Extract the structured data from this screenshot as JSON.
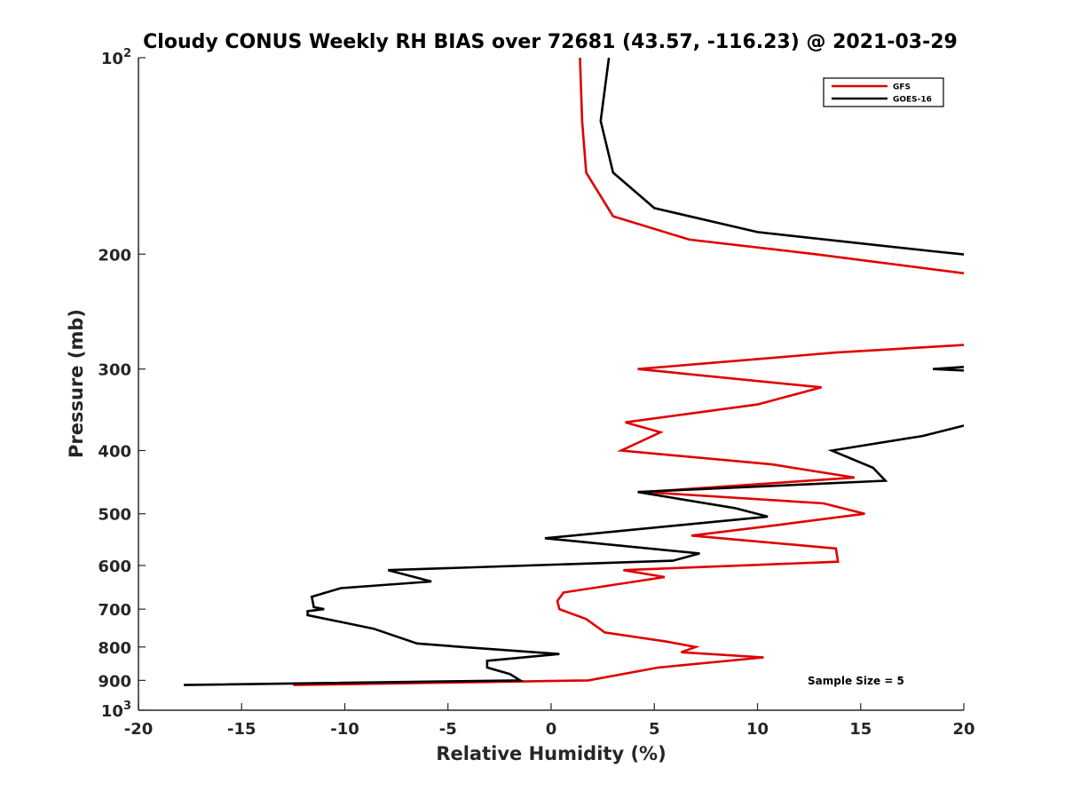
{
  "chart_data": {
    "type": "line",
    "title": "Cloudy CONUS Weekly RH BIAS over 72681 (43.57, -116.23) @ 2021-03-29",
    "xlabel": "Relative Humidity (%)",
    "ylabel": "Pressure (mb)",
    "xlim": [
      -20,
      20
    ],
    "ylim": [
      100,
      1000
    ],
    "y_scale": "log",
    "y_reversed": true,
    "x_ticks": [
      "-20",
      "-15",
      "-10",
      "-5",
      "0",
      "5",
      "10",
      "15",
      "20"
    ],
    "y_ticks": [
      {
        "value": 100,
        "base": "10",
        "exp": "2"
      },
      {
        "value": 200,
        "label": "200"
      },
      {
        "value": 300,
        "label": "300"
      },
      {
        "value": 400,
        "label": "400"
      },
      {
        "value": 500,
        "label": "500"
      },
      {
        "value": 600,
        "label": "600"
      },
      {
        "value": 700,
        "label": "700"
      },
      {
        "value": 800,
        "label": "800"
      },
      {
        "value": 900,
        "label": "900"
      },
      {
        "value": 1000,
        "base": "10",
        "exp": "3"
      }
    ],
    "legend_position": "top-right",
    "grid": false,
    "annotation": "Sample Size = 5",
    "series": [
      {
        "name": "GFS",
        "color": "#e00000",
        "points": [
          [
            1.4,
            100
          ],
          [
            1.5,
            125
          ],
          [
            1.7,
            150
          ],
          [
            3.0,
            175
          ],
          [
            6.7,
            190
          ],
          [
            12.8,
            200
          ],
          [
            20.5,
            215
          ],
          [
            null,
            null
          ],
          [
            20.5,
            275
          ],
          [
            13.8,
            283
          ],
          [
            4.2,
            300
          ],
          [
            13.1,
            320
          ],
          [
            10.0,
            340
          ],
          [
            3.6,
            362
          ],
          [
            5.3,
            375
          ],
          [
            3.4,
            400
          ],
          [
            10.7,
            420
          ],
          [
            14.7,
            440
          ],
          [
            4.5,
            463
          ],
          [
            13.2,
            482
          ],
          [
            15.2,
            500
          ],
          [
            11.0,
            520
          ],
          [
            6.8,
            540
          ],
          [
            13.8,
            565
          ],
          [
            13.9,
            592
          ],
          [
            3.5,
            610
          ],
          [
            5.5,
            625
          ],
          [
            0.6,
            660
          ],
          [
            0.3,
            680
          ],
          [
            0.4,
            700
          ],
          [
            1.7,
            725
          ],
          [
            2.6,
            760
          ],
          [
            5.6,
            785
          ],
          [
            7.0,
            800
          ],
          [
            6.3,
            815
          ],
          [
            10.3,
            830
          ],
          [
            5.2,
            860
          ],
          [
            1.8,
            900
          ],
          [
            -12.5,
            915
          ]
        ]
      },
      {
        "name": "GOES-16",
        "color": "#000000",
        "points": [
          [
            2.8,
            100
          ],
          [
            2.4,
            125
          ],
          [
            3.0,
            150
          ],
          [
            5.0,
            170
          ],
          [
            10.0,
            185
          ],
          [
            18.5,
            198
          ],
          [
            20.5,
            201
          ],
          [
            null,
            null
          ],
          [
            20.5,
            297
          ],
          [
            18.5,
            300
          ],
          [
            20.5,
            302
          ],
          [
            null,
            null
          ],
          [
            20.5,
            363
          ],
          [
            18.0,
            380
          ],
          [
            13.6,
            400
          ],
          [
            15.6,
            425
          ],
          [
            16.2,
            445
          ],
          [
            4.2,
            463
          ],
          [
            8.9,
            490
          ],
          [
            10.5,
            505
          ],
          [
            -0.3,
            545
          ],
          [
            7.2,
            575
          ],
          [
            5.9,
            590
          ],
          [
            -7.9,
            610
          ],
          [
            -5.8,
            635
          ],
          [
            -10.2,
            650
          ],
          [
            -11.6,
            670
          ],
          [
            -11.5,
            695
          ],
          [
            -11.0,
            700
          ],
          [
            -11.8,
            705
          ],
          [
            -11.8,
            715
          ],
          [
            -8.6,
            750
          ],
          [
            -6.5,
            790
          ],
          [
            -4.3,
            800
          ],
          [
            0.4,
            820
          ],
          [
            -3.1,
            840
          ],
          [
            -3.1,
            860
          ],
          [
            -2.0,
            880
          ],
          [
            -1.5,
            900
          ],
          [
            -17.8,
            915
          ]
        ]
      }
    ]
  }
}
